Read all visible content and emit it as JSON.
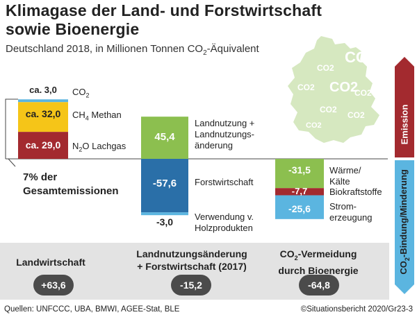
{
  "title_line1": "Klimagase der Land- und Forstwirtschaft",
  "title_line2": "sowie Bioenergie",
  "subtitle_pre": "Deutschland 2018, in Millionen Tonnen CO",
  "subtitle_sub": "2",
  "subtitle_post": "-Äquivalent",
  "note_line1": "7% der",
  "note_line2": "Gesamtemissionen",
  "side_emission": "Emission",
  "side_binding_pre": "CO",
  "side_binding_sub": "2",
  "side_binding_post": "-Bindung/Minderung",
  "map_labels": [
    "CO2",
    "CO2",
    "CO2",
    "CO2",
    "CO2",
    "CO2",
    "CO2",
    "CO2"
  ],
  "colors": {
    "co2": "#5bb5e0",
    "ch4": "#f5c518",
    "n2o": "#a32a2f",
    "land_use": "#8cbf4f",
    "forestry": "#2a6fa8",
    "wood": "#5bb5e0",
    "heat": "#8cbf4f",
    "biofuel": "#a32a2f",
    "power": "#5bb5e0",
    "map": "#d6e8c0",
    "pill": "#4b4b4b",
    "band": "#e3e3e3"
  },
  "chart_data": {
    "type": "bar",
    "stacked": true,
    "groups": [
      {
        "name": "Landwirtschaft",
        "segments": [
          {
            "value_label": "ca. 3,0",
            "label_pre": "CO",
            "label_sub": "2",
            "label_post": "",
            "value": 3.0
          },
          {
            "value_label": "ca. 32,0",
            "label_pre": "CH",
            "label_sub": "4",
            "label_post": " Methan",
            "value": 32.0
          },
          {
            "value_label": "ca. 29,0",
            "label_pre": "N",
            "label_sub": "2",
            "label_post": "O Lachgas",
            "value": 29.0
          }
        ],
        "total_label": "+63,6",
        "total": 63.6
      },
      {
        "name": "Landnutzungsänderung + Forstwirtschaft (2017)",
        "segments": [
          {
            "value_label": "45,4",
            "label_line1": "Landnutzung +",
            "label_line2": "Landnutzungs-",
            "label_line3": "änderung",
            "value": 45.4
          },
          {
            "value_label": "-57,6",
            "label_line1": "Forstwirtschaft",
            "value": -57.6
          },
          {
            "value_label": "-3,0",
            "label_line1": "Verwendung v.",
            "label_line2": "Holzprodukten",
            "value": -3.0
          }
        ],
        "total_label": "-15,2",
        "total": -15.2
      },
      {
        "name_pre": "CO",
        "name_sub": "2",
        "name_post": "-Vermeidung",
        "name_line2": "durch Bioenergie",
        "segments": [
          {
            "value_label": "-31,5",
            "label_line1": "Wärme/",
            "label_line2": "Kälte",
            "value": -31.5
          },
          {
            "value_label": "-7,7",
            "label_line1": "Biokraftstoffe",
            "value": -7.7
          },
          {
            "value_label": "-25,6",
            "label_line1": "Strom-",
            "label_line2": "erzeugung",
            "value": -25.6
          }
        ],
        "total_label": "-64,8",
        "total": -64.8
      }
    ],
    "headers": {
      "group1": "Landwirtschaft",
      "group2_line1": "Landnutzungsänderung",
      "group2_line2": "+ Forstwirtschaft (2017)"
    }
  },
  "footer_left": "Quellen: UNFCCC, UBA, BMWI, AGEE-Stat, BLE",
  "footer_right": "©Situationsbericht 2020/Gr23-3"
}
